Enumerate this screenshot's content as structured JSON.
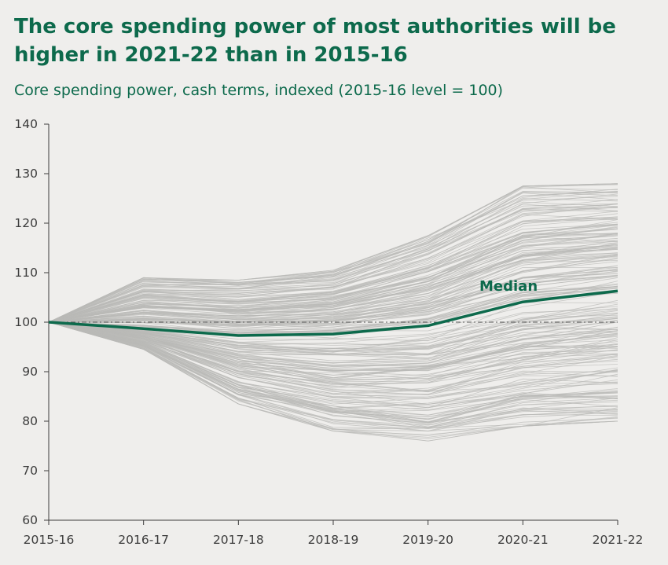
{
  "chart_data": {
    "type": "line",
    "title": "The core spending power of most authorities will be higher in 2021-22 than in 2015-16",
    "subtitle": "Core spending power, cash terms, indexed (2015-16 level = 100)",
    "x": [
      "2015-16",
      "2016-17",
      "2017-18",
      "2018-19",
      "2019-20",
      "2020-21",
      "2021-22"
    ],
    "ylim": [
      60,
      140
    ],
    "yticks": [
      60,
      70,
      80,
      90,
      100,
      110,
      120,
      130,
      140
    ],
    "reference_line": 100,
    "series": [
      {
        "name": "Median",
        "values": [
          100,
          98.7,
          97.3,
          97.6,
          99.3,
          104.1,
          106.3
        ],
        "color": "#0d6a4c"
      }
    ],
    "authorities_range": {
      "color": "#b9b9b7",
      "min": [
        100,
        94.5,
        83.5,
        78,
        76,
        79,
        80
      ],
      "max": [
        100,
        109,
        108.5,
        110.5,
        117.5,
        127.5,
        128
      ]
    }
  }
}
